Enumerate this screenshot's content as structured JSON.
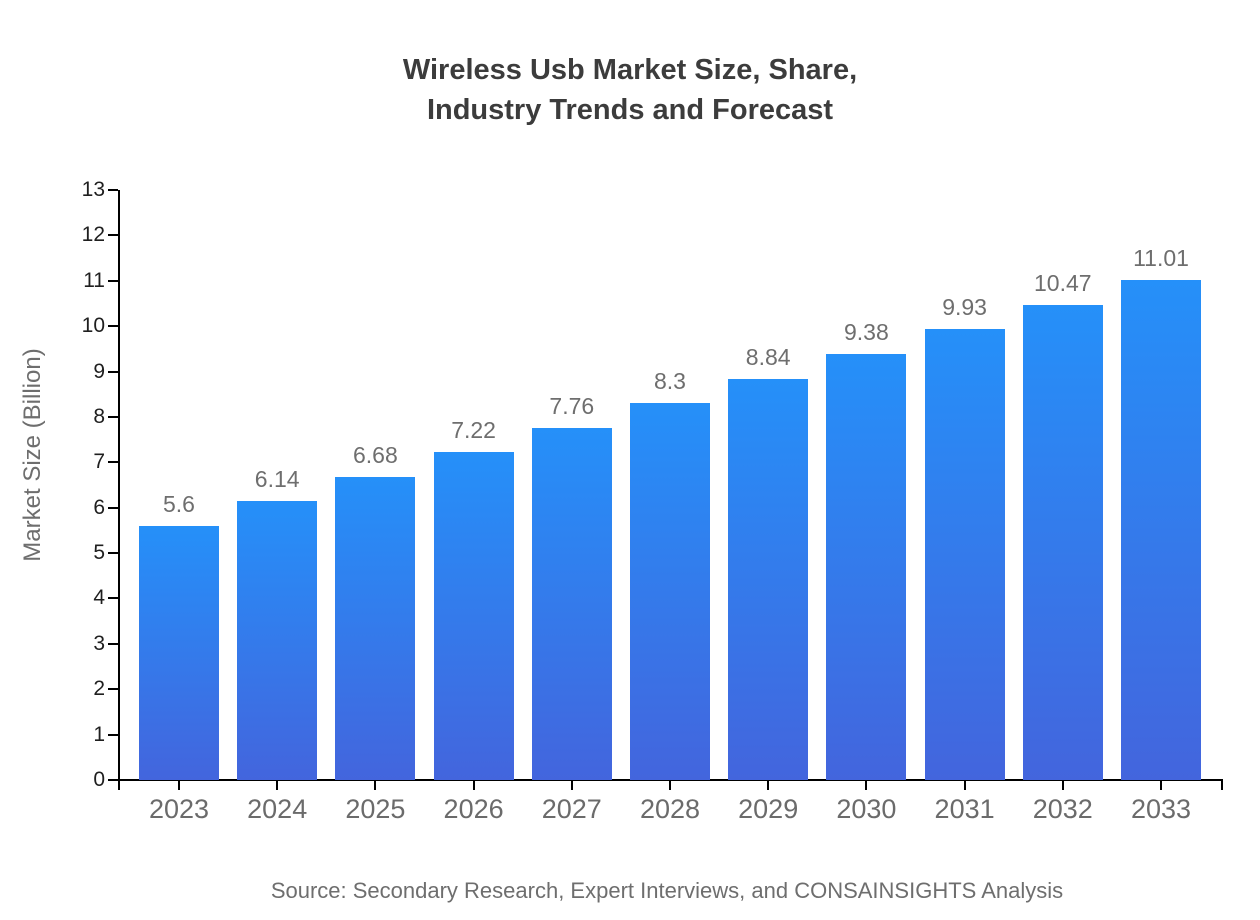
{
  "chart_data": {
    "type": "bar",
    "title_lines": [
      "Wireless Usb Market Size, Share,",
      "Industry Trends and Forecast"
    ],
    "categories": [
      "2023",
      "2024",
      "2025",
      "2026",
      "2027",
      "2028",
      "2029",
      "2030",
      "2031",
      "2032",
      "2033"
    ],
    "values": [
      5.6,
      6.14,
      6.68,
      7.22,
      7.76,
      8.3,
      8.84,
      9.38,
      9.93,
      10.47,
      11.01
    ],
    "value_labels": [
      "5.6",
      "6.14",
      "6.68",
      "7.22",
      "7.76",
      "8.3",
      "8.84",
      "9.38",
      "9.93",
      "10.47",
      "11.01"
    ],
    "xlabel": "",
    "ylabel": "Market Size (Billion)",
    "ylim": [
      0,
      13
    ],
    "ytick_step": 1,
    "ytick_labels": [
      "0",
      "1",
      "2",
      "3",
      "4",
      "5",
      "6",
      "7",
      "8",
      "9",
      "10",
      "11",
      "12",
      "13"
    ],
    "grid": false,
    "legend": "none",
    "source": "Source: Secondary Research, Expert Interviews, and CONSAINSIGHTS Analysis",
    "colors": {
      "bar_gradient_top": "#2590f9",
      "bar_gradient_bottom": "#4365dd",
      "axis": "#000000",
      "title_text": "#3c3c3c",
      "label_text": "#6e6e6e",
      "ytick_text": "#1f1f1f",
      "xtick_text": "#6b6b6b"
    }
  }
}
